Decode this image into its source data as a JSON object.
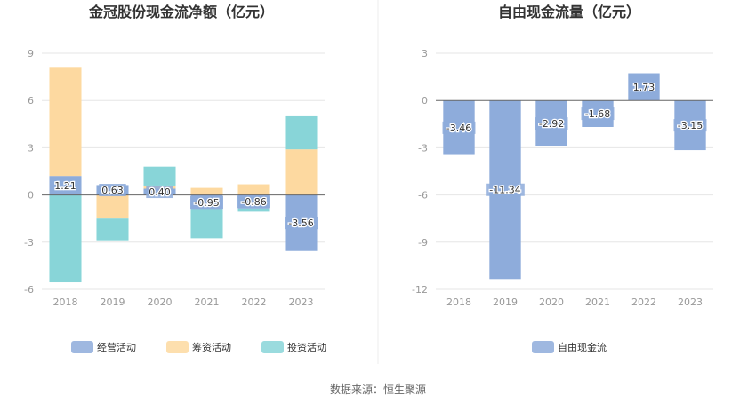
{
  "source_label": "数据来源：恒生聚源",
  "colors": {
    "operating": "#8eacdb",
    "financing": "#fdd9a0",
    "investing": "#88d5d8",
    "free": "#8eacdb",
    "grid": "#e6e6e6",
    "axis": "#666666"
  },
  "chart_data": [
    {
      "type": "bar",
      "stacked": true,
      "title": "金冠股份现金流净额（亿元）",
      "categories": [
        "2018",
        "2019",
        "2020",
        "2021",
        "2022",
        "2023"
      ],
      "ylim": [
        -6,
        9
      ],
      "yticks": [
        -6,
        -3,
        0,
        3,
        6,
        9
      ],
      "grid": true,
      "legend_position": "bottom",
      "series": [
        {
          "name": "经营活动",
          "color_key": "operating",
          "values": [
            1.21,
            0.63,
            0.4,
            -0.95,
            -0.86,
            -3.56
          ],
          "labels": [
            "1.21",
            "0.63",
            "0.40",
            "-0.95",
            "-0.86",
            "-3.56"
          ]
        },
        {
          "name": "筹资活动",
          "color_key": "financing",
          "values": [
            6.87,
            -1.5,
            0.2,
            0.45,
            0.68,
            2.9
          ]
        },
        {
          "name": "投资活动",
          "color_key": "investing",
          "values": [
            -5.55,
            -1.38,
            1.2,
            -1.8,
            -0.2,
            2.1
          ]
        }
      ]
    },
    {
      "type": "bar",
      "title": "自由现金流量（亿元）",
      "categories": [
        "2018",
        "2019",
        "2020",
        "2021",
        "2022",
        "2023"
      ],
      "ylim": [
        -12,
        3
      ],
      "yticks": [
        -12,
        -9,
        -6,
        -3,
        0,
        3
      ],
      "grid": true,
      "legend_position": "bottom",
      "series": [
        {
          "name": "自由现金流",
          "color_key": "free",
          "values": [
            -3.46,
            -11.34,
            -2.92,
            -1.68,
            1.73,
            -3.15
          ],
          "labels": [
            "-3.46",
            "-11.34",
            "-2.92",
            "-1.68",
            "1.73",
            "-3.15"
          ]
        }
      ]
    }
  ]
}
